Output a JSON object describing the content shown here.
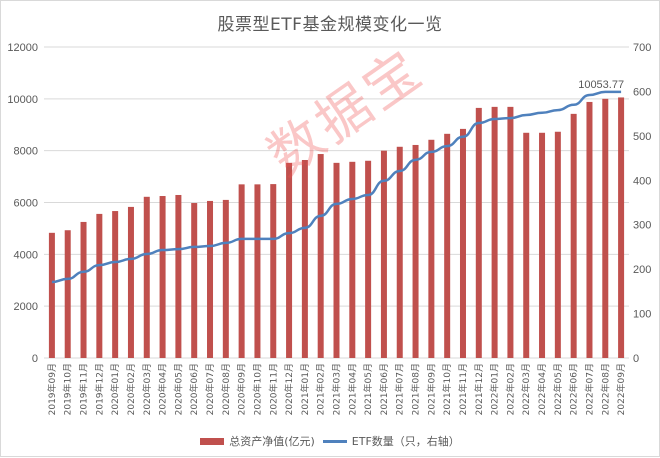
{
  "chart_data": {
    "type": "bar",
    "title": "股票型ETF基金规模变化一览",
    "xlabel": "",
    "ylabel": "",
    "ylabel_right": "",
    "ylim": [
      0,
      12000
    ],
    "ylim_right": [
      0,
      700
    ],
    "yticks": [
      0,
      2000,
      4000,
      6000,
      8000,
      10000,
      12000
    ],
    "yticks_right": [
      0,
      100,
      200,
      300,
      400,
      500,
      600,
      700
    ],
    "grid": true,
    "legend_position": "bottom",
    "categories": [
      "2019年09月",
      "2019年10月",
      "2019年11月",
      "2019年12月",
      "2020年01月",
      "2020年02月",
      "2020年03月",
      "2020年04月",
      "2020年05月",
      "2020年06月",
      "2020年07月",
      "2020年08月",
      "2020年09月",
      "2020年10月",
      "2020年11月",
      "2020年12月",
      "2021年01月",
      "2021年02月",
      "2021年03月",
      "2021年04月",
      "2021年05月",
      "2021年06月",
      "2021年07月",
      "2021年08月",
      "2021年09月",
      "2021年10月",
      "2021年11月",
      "2021年12月",
      "2022年01月",
      "2022年02月",
      "2022年03月",
      "2022年04月",
      "2022年05月",
      "2022年06月",
      "2022年07月",
      "2022年08月",
      "2022年09月"
    ],
    "series": [
      {
        "name": "总资产净值(亿元)",
        "type": "bar",
        "axis": "left",
        "color": "#c0504d",
        "values": [
          4830,
          4930,
          5250,
          5560,
          5670,
          5830,
          6220,
          6250,
          6290,
          5980,
          6060,
          6100,
          6700,
          6700,
          6710,
          7530,
          7640,
          7870,
          7530,
          7570,
          7610,
          8000,
          8150,
          8220,
          8420,
          8650,
          8840,
          9650,
          9690,
          9690,
          8690,
          8690,
          8730,
          9420,
          9880,
          10000,
          10053.77
        ]
      },
      {
        "name": "ETF数量（只，右轴）",
        "type": "line",
        "axis": "right",
        "color": "#4f81bd",
        "values": [
          171,
          178,
          194,
          209,
          216,
          223,
          234,
          243,
          245,
          250,
          252,
          259,
          268,
          268,
          268,
          281,
          293,
          320,
          347,
          358,
          367,
          399,
          421,
          446,
          464,
          477,
          498,
          529,
          538,
          540,
          547,
          552,
          558,
          570,
          592,
          599,
          599
        ]
      }
    ],
    "annotations": [
      {
        "text": "10053.77",
        "category": "2022年09月",
        "series": "总资产净值(亿元)"
      }
    ]
  },
  "watermark": "数据宝",
  "legend": {
    "bar_label": "总资产净值(亿元)",
    "line_label": "ETF数量（只，右轴）"
  }
}
